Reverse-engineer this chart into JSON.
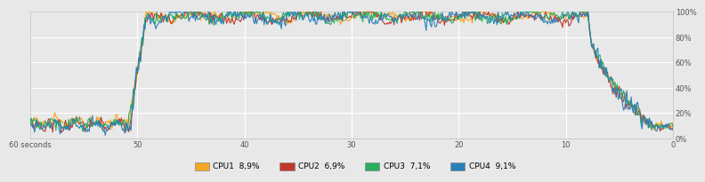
{
  "colors": {
    "cpu1": "#f5a623",
    "cpu2": "#c0392b",
    "cpu3": "#27ae60",
    "cpu4": "#2980b9"
  },
  "legend": [
    {
      "label": "CPU1  8,9%",
      "color": "#f5a623"
    },
    {
      "label": "CPU2  6,9%",
      "color": "#c0392b"
    },
    {
      "label": "CPU3  7,1%",
      "color": "#27ae60"
    },
    {
      "label": "CPU4  9,1%",
      "color": "#2980b9"
    }
  ],
  "bg_color": "#dcdcdc",
  "plot_bg": "#e8e8e8",
  "fig_bg": "#e8e8e8",
  "grid_color": "#ffffff",
  "line_width": 0.8,
  "total_points": 600,
  "ylim": [
    0,
    100
  ],
  "xlim": [
    60,
    0
  ],
  "y_ticks": [
    0,
    20,
    40,
    60,
    80,
    100
  ],
  "y_tick_labels": [
    "0%",
    "20%",
    "40%",
    "60%",
    "80%",
    "100%"
  ],
  "x_ticks": [
    60,
    50,
    40,
    30,
    20,
    10,
    0
  ],
  "x_tick_labels": [
    "60 seconds",
    "50",
    "40",
    "30",
    "20",
    "10",
    "0"
  ]
}
